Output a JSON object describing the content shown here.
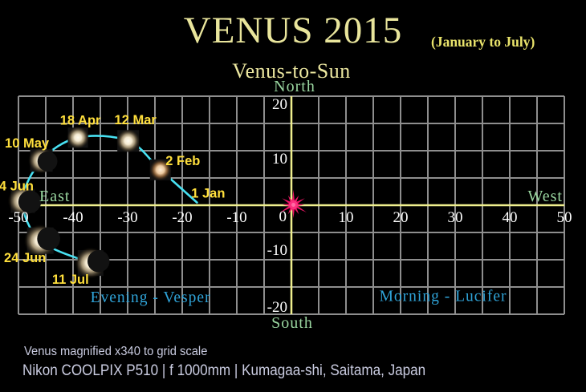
{
  "header": {
    "title": "VENUS 2015",
    "subtitle": "(January to July)",
    "chart_label": "Venus-to-Sun"
  },
  "footer": {
    "line1": "Venus magnified x340 to grid scale",
    "line2": "Nikon COOLPIX P510  |  f 1000mm  |  Kumagaa-shi, Saitama, Japan"
  },
  "colors": {
    "background": "#000000",
    "title_yellow": "#e9e59c",
    "subtitle_yellow": "#e9e36b",
    "date_label_yellow": "#ffdf3c",
    "direction_green": "#9ad6a0",
    "region_blue": "#2fa3d8",
    "curve_cyan": "#48e1f2",
    "grid_gray": "#8e8e8e",
    "axis_yellow": "#efef8e",
    "tick_white": "#ffffff",
    "sun_pink": "#ee1365",
    "footer_lavender": "#c9cbe0"
  },
  "chart_data": {
    "type": "scatter",
    "title": "Venus-to-Sun",
    "xlabel": "",
    "ylabel": "",
    "xlim": [
      -50,
      50
    ],
    "ylim": [
      -20,
      20
    ],
    "grid_step": 5,
    "grid": "on",
    "x_ticks": [
      -50,
      -40,
      -30,
      -20,
      -10,
      0,
      10,
      20,
      30,
      40,
      50
    ],
    "y_ticks": [
      20,
      10,
      -10,
      -20
    ],
    "axis_labels": {
      "top": "North",
      "bottom": "South",
      "left": "East",
      "right": "West"
    },
    "region_labels": [
      {
        "id": "evening",
        "text": "Evening - Vesper",
        "x": -25.8,
        "y": -16.9
      },
      {
        "id": "morning",
        "text": "Morning - Lucifer",
        "x": 27.8,
        "y": -16.7
      }
    ],
    "sun": {
      "x": 0,
      "y": 0
    },
    "points": [
      {
        "date": "1 Jan",
        "x": -17.3,
        "y": 0.5,
        "has_image": false,
        "label_offset": [
          14,
          -6
        ]
      },
      {
        "date": "2 Feb",
        "x": -24.0,
        "y": 6.5,
        "has_image": true,
        "phase": "gibbous",
        "tint": "warm",
        "radius": 9,
        "photo": 26,
        "label_offset": [
          28,
          -6
        ]
      },
      {
        "date": "12 Mar",
        "x": -29.9,
        "y": 11.8,
        "has_image": true,
        "phase": "gibbous",
        "tint": "cool",
        "radius": 9.5,
        "photo": 27,
        "label_offset": [
          9,
          -21
        ]
      },
      {
        "date": "18 Apr",
        "x": -39.1,
        "y": 12.4,
        "has_image": true,
        "phase": "gibbous",
        "tint": "cool",
        "radius": 9,
        "photo": 25,
        "label_offset": [
          3,
          -16
        ]
      },
      {
        "date": "10 May",
        "x": -45.8,
        "y": 8.2,
        "has_image": true,
        "phase": "half",
        "tint": "cool",
        "radius": 10.5,
        "photo": 28,
        "label_offset": [
          -18,
          -16
        ]
      },
      {
        "date": "4 Jun",
        "x": -49.2,
        "y": 0.8,
        "has_image": true,
        "phase": "half",
        "tint": "cool",
        "radius": 12,
        "photo": 30,
        "label_offset": [
          -8,
          -13
        ]
      },
      {
        "date": "24 Jun",
        "x": -46.0,
        "y": -6.5,
        "has_image": true,
        "phase": "crescent",
        "tint": "cool",
        "radius": 13,
        "photo": 33,
        "label_offset": [
          -19,
          27
        ]
      },
      {
        "date": "11 Jul",
        "x": -36.8,
        "y": -10.6,
        "has_image": true,
        "phase": "crescent",
        "tint": "cool",
        "radius": 12.5,
        "photo": 32,
        "label_offset": [
          -25,
          26
        ]
      }
    ]
  }
}
